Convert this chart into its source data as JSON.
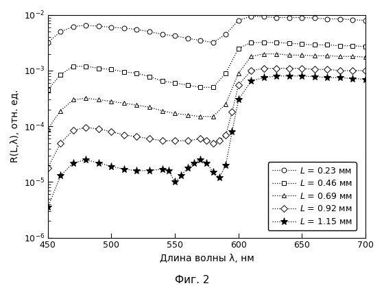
{
  "xlabel": "Длина волны λ, нм",
  "ylabel": "R(L,λ), отн. ед.",
  "caption": "Фиг. 2",
  "xlim": [
    450,
    700
  ],
  "ylim": [
    1e-06,
    0.01
  ],
  "markersizes": [
    5,
    5,
    5,
    5,
    8
  ],
  "series": [
    {
      "label": "L = 0.23 мм",
      "marker": "o",
      "mfc": "white",
      "x": [
        450,
        460,
        470,
        480,
        490,
        500,
        510,
        520,
        530,
        540,
        550,
        560,
        570,
        580,
        590,
        600,
        610,
        620,
        630,
        640,
        650,
        660,
        670,
        680,
        690,
        700
      ],
      "y": [
        0.0032,
        0.005,
        0.0062,
        0.0065,
        0.0063,
        0.006,
        0.0058,
        0.0055,
        0.005,
        0.0045,
        0.0042,
        0.0038,
        0.0035,
        0.0032,
        0.0045,
        0.008,
        0.0095,
        0.0093,
        0.009,
        0.009,
        0.009,
        0.0088,
        0.0085,
        0.0085,
        0.0082,
        0.008
      ]
    },
    {
      "label": "L = 0.46 мм",
      "marker": "s",
      "mfc": "white",
      "x": [
        450,
        460,
        470,
        480,
        490,
        500,
        510,
        520,
        530,
        540,
        550,
        560,
        570,
        580,
        590,
        600,
        610,
        620,
        630,
        640,
        650,
        660,
        670,
        680,
        690,
        700
      ],
      "y": [
        0.00045,
        0.00085,
        0.0012,
        0.0012,
        0.0011,
        0.00105,
        0.00095,
        0.0009,
        0.00078,
        0.00065,
        0.0006,
        0.00055,
        0.0005,
        0.0005,
        0.0009,
        0.0025,
        0.0032,
        0.0032,
        0.0032,
        0.0031,
        0.003,
        0.0029,
        0.0029,
        0.0028,
        0.0028,
        0.0027
      ]
    },
    {
      "label": "L = 0.69 мм",
      "marker": "^",
      "mfc": "white",
      "x": [
        450,
        460,
        470,
        480,
        490,
        500,
        510,
        520,
        530,
        540,
        550,
        560,
        570,
        580,
        590,
        600,
        610,
        620,
        630,
        640,
        650,
        660,
        670,
        680,
        690,
        700
      ],
      "y": [
        9e-05,
        0.00019,
        0.0003,
        0.00032,
        0.0003,
        0.00028,
        0.00026,
        0.00024,
        0.00022,
        0.00019,
        0.00017,
        0.00016,
        0.00015,
        0.00015,
        0.00025,
        0.0009,
        0.0018,
        0.002,
        0.002,
        0.0019,
        0.0019,
        0.00185,
        0.00185,
        0.0018,
        0.0018,
        0.00175
      ]
    },
    {
      "label": "L = 0.92 мм",
      "marker": "D",
      "mfc": "white",
      "x": [
        450,
        460,
        470,
        480,
        490,
        500,
        510,
        520,
        530,
        540,
        550,
        560,
        570,
        575,
        580,
        585,
        590,
        595,
        600,
        610,
        620,
        630,
        640,
        650,
        660,
        670,
        680,
        690,
        700
      ],
      "y": [
        1.8e-05,
        5e-05,
        8.5e-05,
        9.5e-05,
        9e-05,
        8e-05,
        7e-05,
        6.5e-05,
        6e-05,
        5.5e-05,
        5.5e-05,
        5.5e-05,
        6e-05,
        5.5e-05,
        5e-05,
        5.5e-05,
        7e-05,
        0.00018,
        0.00055,
        0.001,
        0.0011,
        0.0011,
        0.0011,
        0.0011,
        0.00105,
        0.00105,
        0.001,
        0.001,
        0.001
      ]
    },
    {
      "label": "L = 1.15 мм",
      "marker": "*",
      "mfc": "black",
      "x": [
        450,
        460,
        470,
        480,
        490,
        500,
        510,
        520,
        530,
        540,
        545,
        550,
        555,
        560,
        565,
        570,
        575,
        580,
        585,
        590,
        595,
        600,
        610,
        620,
        630,
        640,
        650,
        660,
        670,
        680,
        690,
        700
      ],
      "y": [
        3.5e-06,
        1.3e-05,
        2.2e-05,
        2.5e-05,
        2.2e-05,
        1.9e-05,
        1.7e-05,
        1.6e-05,
        1.6e-05,
        1.7e-05,
        1.6e-05,
        1e-05,
        1.3e-05,
        1.8e-05,
        2.2e-05,
        2.5e-05,
        2.2e-05,
        1.5e-05,
        1.2e-05,
        2e-05,
        8e-05,
        0.0003,
        0.00065,
        0.00075,
        0.0008,
        0.0008,
        0.0008,
        0.00078,
        0.00075,
        0.00075,
        0.00072,
        0.0007
      ]
    }
  ],
  "legend_labels": [
    "$\\mathit{L}$ = 0.23 мм",
    "$\\mathit{L}$ = 0.46 мм",
    "$\\mathit{L}$ = 0.69 мм",
    "$\\mathit{L}$ = 0.92 мм",
    "$\\mathit{L}$ = 1.15 мм"
  ]
}
